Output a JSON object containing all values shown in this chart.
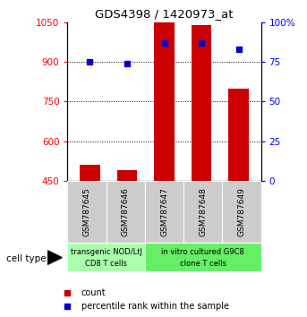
{
  "title": "GDS4398 / 1420973_at",
  "samples": [
    "GSM787645",
    "GSM787646",
    "GSM787647",
    "GSM787648",
    "GSM787649"
  ],
  "counts": [
    510,
    490,
    1050,
    1040,
    800
  ],
  "percentile_ranks": [
    75,
    74,
    87,
    87,
    83
  ],
  "ylim_left": [
    450,
    1050
  ],
  "ylim_right": [
    0,
    100
  ],
  "yticks_left": [
    450,
    600,
    750,
    900,
    1050
  ],
  "yticks_right": [
    0,
    25,
    50,
    75,
    100
  ],
  "bar_color": "#cc0000",
  "dot_color": "#0000cc",
  "bar_width": 0.55,
  "group0_label_line1": "transgenic NOD/LtJ",
  "group0_label_line2": "CD8 T cells",
  "group1_label_line1": "in vitro cultured G9C8",
  "group1_label_line2": "clone T cells",
  "group0_color": "#aaffaa",
  "group1_color": "#66ee66",
  "cell_type_label": "cell type",
  "legend_count_label": "count",
  "legend_pct_label": "percentile rank within the sample",
  "tick_area_color": "#cccccc",
  "plot_bg_color": "#ffffff"
}
